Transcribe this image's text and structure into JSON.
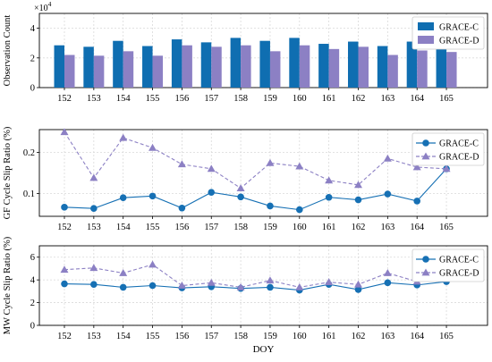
{
  "chart_data": [
    {
      "type": "bar",
      "ylabel": "Observation Count",
      "multiplier_label": "×10",
      "multiplier_exponent": "4",
      "categories": [
        "152",
        "153",
        "154",
        "155",
        "156",
        "157",
        "158",
        "159",
        "160",
        "161",
        "162",
        "163",
        "164",
        "165"
      ],
      "yticks": [
        "0",
        "2",
        "4"
      ],
      "ylim": [
        0,
        5
      ],
      "grid": true,
      "legend_position": "top-right",
      "series": [
        {
          "name": "GRACE-C",
          "color": "#0f6eb1",
          "values": [
            2.85,
            2.75,
            3.15,
            2.8,
            3.25,
            3.05,
            3.35,
            3.15,
            3.35,
            2.95,
            3.1,
            2.8,
            3.1,
            2.7
          ]
        },
        {
          "name": "GRACE-D",
          "color": "#8c80c4",
          "values": [
            2.2,
            2.15,
            2.45,
            2.15,
            2.85,
            2.75,
            2.85,
            2.45,
            2.85,
            2.6,
            2.75,
            2.2,
            2.5,
            2.4
          ]
        }
      ]
    },
    {
      "type": "line",
      "ylabel": "GF Cycle Slip Ratio (%)",
      "x": [
        "152",
        "153",
        "154",
        "155",
        "156",
        "157",
        "158",
        "159",
        "160",
        "161",
        "162",
        "163",
        "164",
        "165"
      ],
      "yticks": [
        "0.1",
        "0.2"
      ],
      "ylim": [
        0.045,
        0.255
      ],
      "grid": true,
      "legend_position": "top-right",
      "series": [
        {
          "name": "GRACE-C",
          "color": "#1670b4",
          "marker": "circle",
          "line": "solid",
          "values": [
            0.067,
            0.064,
            0.09,
            0.094,
            0.065,
            0.103,
            0.092,
            0.07,
            0.061,
            0.091,
            0.085,
            0.099,
            0.082,
            0.16
          ]
        },
        {
          "name": "GRACE-D",
          "color": "#8c80c4",
          "marker": "triangle",
          "line": "dashed",
          "values": [
            0.249,
            0.138,
            0.235,
            0.211,
            0.171,
            0.16,
            0.113,
            0.174,
            0.166,
            0.132,
            0.121,
            0.185,
            0.164,
            0.16
          ]
        }
      ]
    },
    {
      "type": "line",
      "ylabel": "MW Cycle Slip Ratio (%)",
      "xlabel": "DOY",
      "x": [
        "152",
        "153",
        "154",
        "155",
        "156",
        "157",
        "158",
        "159",
        "160",
        "161",
        "162",
        "163",
        "164",
        "165"
      ],
      "yticks": [
        "0",
        "2",
        "4",
        "6"
      ],
      "ylim": [
        0,
        7
      ],
      "grid": true,
      "legend_position": "top-right",
      "series": [
        {
          "name": "GRACE-C",
          "color": "#1670b4",
          "marker": "circle",
          "line": "solid",
          "values": [
            3.65,
            3.6,
            3.35,
            3.5,
            3.3,
            3.4,
            3.25,
            3.35,
            3.1,
            3.6,
            3.15,
            3.75,
            3.55,
            3.85
          ]
        },
        {
          "name": "GRACE-D",
          "color": "#8c80c4",
          "marker": "triangle",
          "line": "dashed",
          "values": [
            4.9,
            5.05,
            4.6,
            5.35,
            3.5,
            3.75,
            3.35,
            3.95,
            3.35,
            3.8,
            3.6,
            4.6,
            3.85,
            4.3
          ]
        }
      ]
    }
  ]
}
